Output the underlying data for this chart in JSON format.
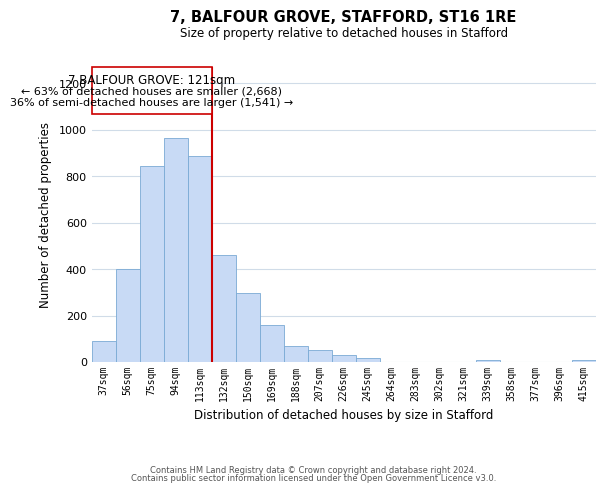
{
  "title": "7, BALFOUR GROVE, STAFFORD, ST16 1RE",
  "subtitle": "Size of property relative to detached houses in Stafford",
  "xlabel": "Distribution of detached houses by size in Stafford",
  "ylabel": "Number of detached properties",
  "bar_labels": [
    "37sqm",
    "56sqm",
    "75sqm",
    "94sqm",
    "113sqm",
    "132sqm",
    "150sqm",
    "169sqm",
    "188sqm",
    "207sqm",
    "226sqm",
    "245sqm",
    "264sqm",
    "283sqm",
    "302sqm",
    "321sqm",
    "339sqm",
    "358sqm",
    "377sqm",
    "396sqm",
    "415sqm"
  ],
  "bar_heights": [
    90,
    400,
    845,
    965,
    885,
    460,
    295,
    160,
    70,
    52,
    32,
    18,
    0,
    0,
    0,
    0,
    10,
    0,
    0,
    0,
    10
  ],
  "bar_color": "#c8daf5",
  "bar_edge_color": "#7aaad4",
  "vline_color": "#cc0000",
  "ylim": [
    0,
    1270
  ],
  "yticks": [
    0,
    200,
    400,
    600,
    800,
    1000,
    1200
  ],
  "annotation_title": "7 BALFOUR GROVE: 121sqm",
  "annotation_line1": "← 63% of detached houses are smaller (2,668)",
  "annotation_line2": "36% of semi-detached houses are larger (1,541) →",
  "annotation_box_color": "#ffffff",
  "annotation_box_edge_color": "#cc0000",
  "footer_line1": "Contains HM Land Registry data © Crown copyright and database right 2024.",
  "footer_line2": "Contains public sector information licensed under the Open Government Licence v3.0.",
  "bg_color": "#ffffff",
  "grid_color": "#d0dce8"
}
